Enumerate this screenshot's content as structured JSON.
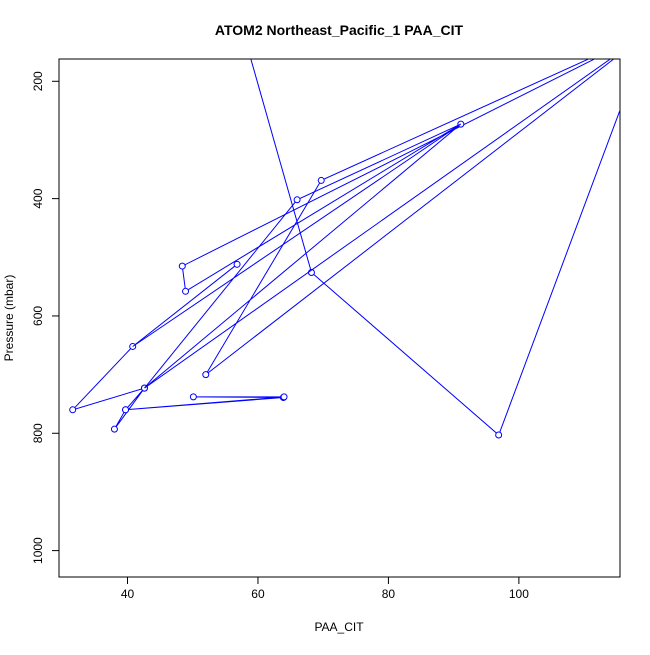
{
  "chart_data": {
    "type": "line",
    "title": "ATOM2 Northeast_Pacific_1 PAA_CIT",
    "xlabel": "PAA_CIT",
    "ylabel": "Pressure (mbar)",
    "xlim": [
      29.5,
      115.5
    ],
    "ylim": [
      1045,
      162
    ],
    "y_axis_reversed": true,
    "x_ticks": [
      40,
      60,
      80,
      100
    ],
    "x_tick_labels": [
      "40",
      "60",
      "80",
      "100"
    ],
    "y_ticks": [
      200,
      400,
      600,
      800,
      1000
    ],
    "y_tick_labels": [
      "200",
      "400",
      "600",
      "800",
      "1000"
    ],
    "grid": false,
    "line_color": "#0000ff",
    "point_style": "open-circle",
    "series": [
      {
        "values_x": [
          56.8,
          40.8,
          31.6,
          42.6,
          39.7,
          63.9,
          50.1,
          64.0,
          39.7,
          38.0,
          42.6,
          91.1,
          48.9,
          48.4,
          120,
          52.0,
          69.7,
          120,
          57.7,
          68.2,
          96.9,
          120
        ],
        "values_y": [
          512,
          652,
          760,
          723,
          760,
          739,
          738,
          738,
          760,
          793,
          723,
          273,
          558,
          515,
          115,
          700,
          369,
          115,
          115,
          526,
          803,
          115
        ],
        "show_point": [
          true,
          true,
          true,
          true,
          true,
          true,
          true,
          true,
          true,
          true,
          true,
          true,
          true,
          true,
          false,
          true,
          true,
          false,
          false,
          true,
          true,
          false
        ]
      },
      {
        "values_x": [
          40.8,
          91.1,
          66.0,
          42.6,
          120,
          120
        ],
        "values_y": [
          652,
          273,
          402,
          723,
          115,
          115
        ],
        "show_point": [
          false,
          false,
          true,
          false,
          false,
          false
        ]
      }
    ]
  }
}
